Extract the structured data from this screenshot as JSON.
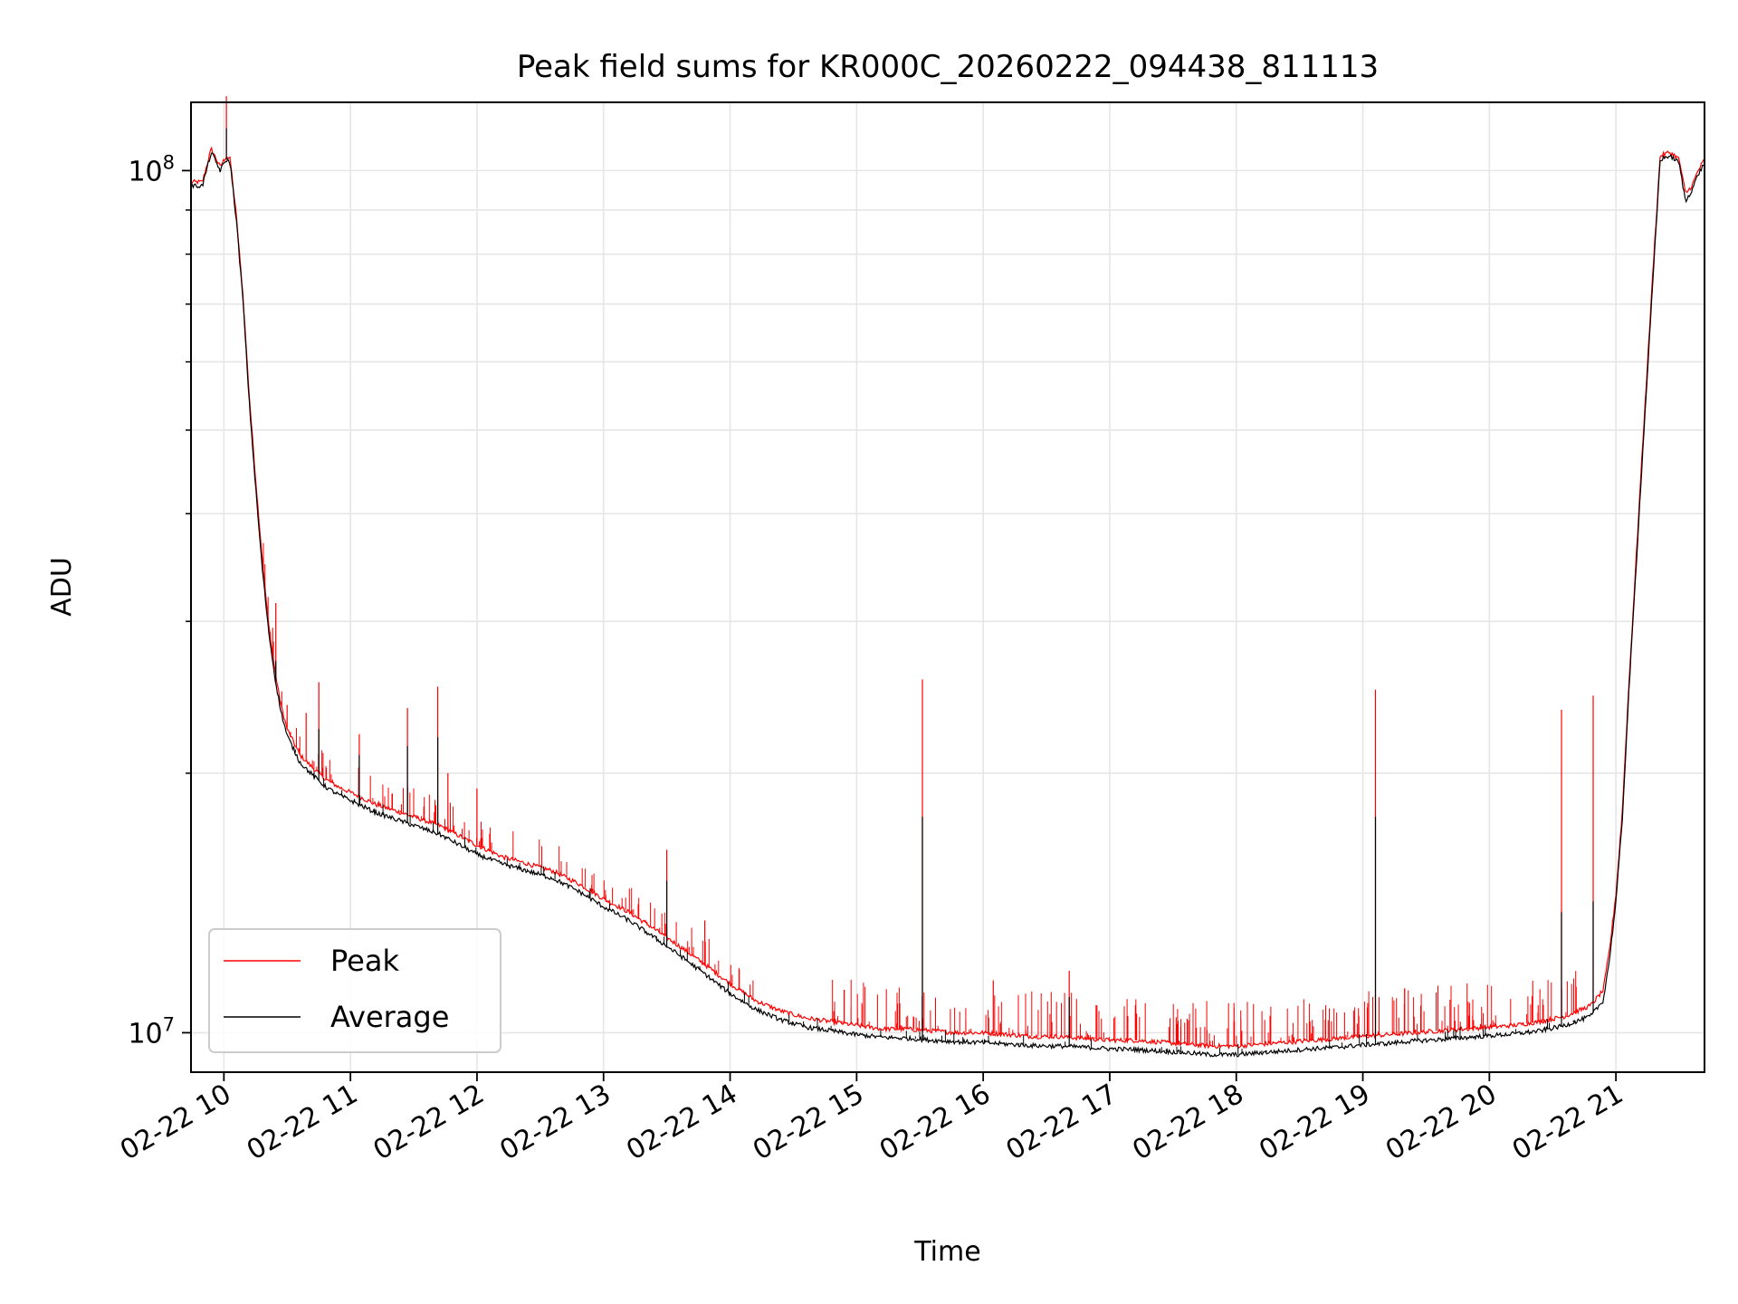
{
  "chart_data": {
    "type": "line",
    "title": "Peak field sums for KR000C_20260222_094438_811113",
    "xlabel": "Time",
    "ylabel": "ADU",
    "yscale": "log",
    "xlim": [
      9.74,
      21.7
    ],
    "ylim": [
      9000000.0,
      120000000
    ],
    "grid": true,
    "legend_position": "lower-left",
    "x_ticks": [
      {
        "value": 10,
        "label": "02-22 10"
      },
      {
        "value": 11,
        "label": "02-22 11"
      },
      {
        "value": 12,
        "label": "02-22 12"
      },
      {
        "value": 13,
        "label": "02-22 13"
      },
      {
        "value": 14,
        "label": "02-22 14"
      },
      {
        "value": 15,
        "label": "02-22 15"
      },
      {
        "value": 16,
        "label": "02-22 16"
      },
      {
        "value": 17,
        "label": "02-22 17"
      },
      {
        "value": 18,
        "label": "02-22 18"
      },
      {
        "value": 19,
        "label": "02-22 19"
      },
      {
        "value": 20,
        "label": "02-22 20"
      },
      {
        "value": 21,
        "label": "02-22 21"
      }
    ],
    "y_major_ticks": [
      {
        "value": 10000000,
        "base": "10",
        "exp": "7"
      },
      {
        "value": 100000000,
        "base": "10",
        "exp": "8"
      }
    ],
    "y_minor_ticks": [
      20000000,
      30000000,
      40000000,
      50000000,
      60000000,
      70000000,
      80000000,
      90000000
    ],
    "series": [
      {
        "name": "Peak",
        "color": "#ff0000",
        "x": [
          9.74,
          9.83,
          9.9,
          9.97,
          10.02,
          10.05,
          10.1,
          10.15,
          10.2,
          10.25,
          10.3,
          10.35,
          10.4,
          10.45,
          10.5,
          10.6,
          10.7,
          10.8,
          10.9,
          11.0,
          11.1,
          11.2,
          11.3,
          11.4,
          11.5,
          11.6,
          11.7,
          11.8,
          11.9,
          12.0,
          12.2,
          12.4,
          12.6,
          12.8,
          13.0,
          13.2,
          13.4,
          13.6,
          13.8,
          14.0,
          14.2,
          14.4,
          14.6,
          14.8,
          15.0,
          15.2,
          15.4,
          15.6,
          15.8,
          16.0,
          16.2,
          16.4,
          16.6,
          16.8,
          17.0,
          17.2,
          17.4,
          17.6,
          17.8,
          18.0,
          18.2,
          18.4,
          18.6,
          18.8,
          19.0,
          19.2,
          19.4,
          19.6,
          19.8,
          20.0,
          20.2,
          20.4,
          20.6,
          20.8,
          20.9,
          20.95,
          21.0,
          21.05,
          21.1,
          21.2,
          21.3,
          21.35,
          21.42,
          21.47,
          21.5,
          21.55,
          21.6,
          21.65,
          21.7
        ],
        "y": [
          97000000,
          97000000,
          106000000,
          101000000,
          104000000,
          103000000,
          88000000,
          72000000,
          55000000,
          44000000,
          36000000,
          30000000,
          26500000,
          24000000,
          22500000,
          21000000,
          20300000,
          19700000,
          19300000,
          19000000,
          18700000,
          18400000,
          18200000,
          18000000,
          17800000,
          17600000,
          17400000,
          17100000,
          16800000,
          16500000,
          16000000,
          15700000,
          15400000,
          14900000,
          14300000,
          13800000,
          13200000,
          12600000,
          12000000,
          11400000,
          10900000,
          10600000,
          10400000,
          10300000,
          10200000,
          10100000,
          10100000,
          10050000,
          10000000,
          10000000,
          9950000,
          9900000,
          9900000,
          9850000,
          9800000,
          9800000,
          9750000,
          9700000,
          9650000,
          9650000,
          9700000,
          9750000,
          9800000,
          9850000,
          9900000,
          9950000,
          10000000,
          10050000,
          10100000,
          10150000,
          10200000,
          10300000,
          10450000,
          10750000,
          11200000,
          12500000,
          14500000,
          18000000,
          25000000,
          45000000,
          80000000,
          104000000,
          105000000,
          104000000,
          103000000,
          94000000,
          96000000,
          100000000,
          103000000
        ],
        "spikes": [
          {
            "x": 10.02,
            "y": 122000000
          },
          {
            "x": 10.41,
            "y": 31500000
          },
          {
            "x": 10.5,
            "y": 24000000
          },
          {
            "x": 10.65,
            "y": 23500000
          },
          {
            "x": 10.75,
            "y": 25500000
          },
          {
            "x": 11.07,
            "y": 22200000
          },
          {
            "x": 11.45,
            "y": 23800000
          },
          {
            "x": 11.69,
            "y": 25200000
          },
          {
            "x": 11.77,
            "y": 20000000
          },
          {
            "x": 12.0,
            "y": 19200000
          },
          {
            "x": 13.5,
            "y": 16300000
          },
          {
            "x": 13.8,
            "y": 13500000
          },
          {
            "x": 15.52,
            "y": 25700000
          },
          {
            "x": 16.08,
            "y": 11500000
          },
          {
            "x": 16.68,
            "y": 11800000
          },
          {
            "x": 19.1,
            "y": 25000000
          },
          {
            "x": 20.57,
            "y": 23700000
          },
          {
            "x": 20.82,
            "y": 24600000
          }
        ]
      },
      {
        "name": "Average",
        "color": "#000000",
        "x": [
          9.74,
          9.83,
          9.9,
          9.97,
          10.02,
          10.05,
          10.1,
          10.15,
          10.2,
          10.25,
          10.3,
          10.35,
          10.4,
          10.45,
          10.5,
          10.6,
          10.7,
          10.8,
          10.9,
          11.0,
          11.1,
          11.2,
          11.3,
          11.4,
          11.5,
          11.6,
          11.7,
          11.8,
          11.9,
          12.0,
          12.2,
          12.4,
          12.6,
          12.8,
          13.0,
          13.2,
          13.4,
          13.6,
          13.8,
          14.0,
          14.2,
          14.4,
          14.6,
          14.8,
          15.0,
          15.2,
          15.4,
          15.6,
          15.8,
          16.0,
          16.2,
          16.4,
          16.6,
          16.8,
          17.0,
          17.2,
          17.4,
          17.6,
          17.8,
          18.0,
          18.2,
          18.4,
          18.6,
          18.8,
          19.0,
          19.2,
          19.4,
          19.6,
          19.8,
          20.0,
          20.2,
          20.4,
          20.6,
          20.8,
          20.9,
          20.95,
          21.0,
          21.05,
          21.1,
          21.2,
          21.3,
          21.35,
          21.42,
          21.47,
          21.5,
          21.55,
          21.6,
          21.65,
          21.7
        ],
        "y": [
          96000000,
          96000000,
          105000000,
          100000000,
          103000000,
          102000000,
          87000000,
          71000000,
          54000000,
          43000000,
          35000000,
          29500000,
          26000000,
          23600000,
          22100000,
          20600000,
          19900000,
          19300000,
          18900000,
          18600000,
          18300000,
          18000000,
          17800000,
          17600000,
          17400000,
          17200000,
          17000000,
          16700000,
          16400000,
          16100000,
          15700000,
          15400000,
          15100000,
          14600000,
          14000000,
          13500000,
          12900000,
          12300000,
          11700000,
          11100000,
          10650000,
          10350000,
          10150000,
          10050000,
          9950000,
          9880000,
          9850000,
          9800000,
          9760000,
          9740000,
          9700000,
          9660000,
          9650000,
          9620000,
          9580000,
          9560000,
          9520000,
          9480000,
          9430000,
          9430000,
          9480000,
          9530000,
          9580000,
          9620000,
          9680000,
          9720000,
          9780000,
          9820000,
          9870000,
          9920000,
          9970000,
          10050000,
          10200000,
          10450000,
          10900000,
          12200000,
          14200000,
          17600000,
          24500000,
          44000000,
          78000000,
          103000000,
          104000000,
          103000000,
          102000000,
          92000000,
          95000000,
          99000000,
          102000000
        ],
        "spikes": [
          {
            "x": 10.02,
            "y": 112000000
          },
          {
            "x": 10.41,
            "y": 27000000
          },
          {
            "x": 10.75,
            "y": 22500000
          },
          {
            "x": 11.07,
            "y": 21000000
          },
          {
            "x": 11.45,
            "y": 21500000
          },
          {
            "x": 11.69,
            "y": 22000000
          },
          {
            "x": 13.5,
            "y": 15000000
          },
          {
            "x": 15.52,
            "y": 17800000
          },
          {
            "x": 16.68,
            "y": 11000000
          },
          {
            "x": 19.1,
            "y": 17800000
          },
          {
            "x": 20.57,
            "y": 13800000
          },
          {
            "x": 20.82,
            "y": 14200000
          }
        ]
      }
    ]
  }
}
